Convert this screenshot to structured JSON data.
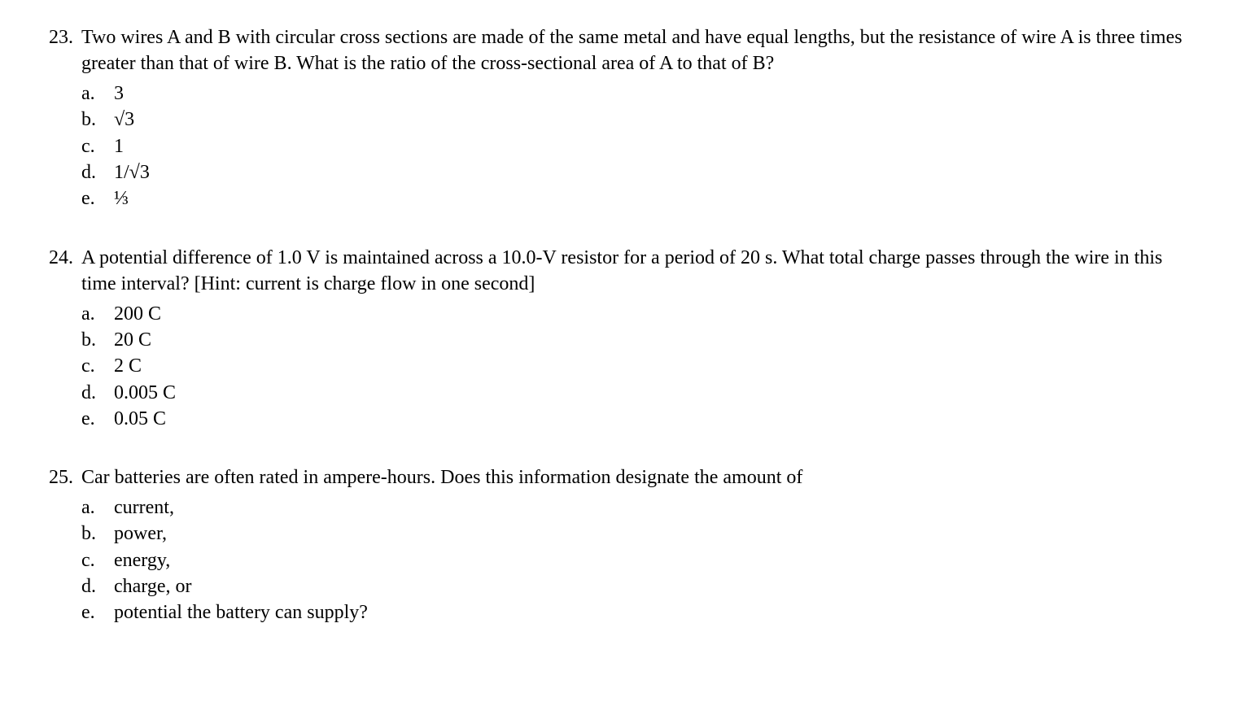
{
  "page": {
    "background_color": "#ffffff",
    "text_color": "#000000",
    "font_family": "Times New Roman",
    "font_size_pt": 18
  },
  "questions": [
    {
      "number": "23.",
      "text": "Two wires A and B with circular cross sections are made of the same metal and have equal lengths, but  the resistance of wire A is three times greater than that of wire B. What is the ratio of the cross-sectional area of A to that of B?",
      "options": [
        {
          "letter": "a.",
          "text": "3"
        },
        {
          "letter": "b.",
          "text": "√3"
        },
        {
          "letter": "c.",
          "text": "1"
        },
        {
          "letter": "d.",
          "text": "1/√3"
        },
        {
          "letter": "e.",
          "text": "⅓"
        }
      ]
    },
    {
      "number": "24.",
      "text": "A potential difference of 1.0 V is maintained across a 10.0-V resistor for a period of 20 s. What total charge passes through the wire in this time interval? [Hint: current is charge flow in one second]",
      "options": [
        {
          "letter": "a.",
          "text": "200 C"
        },
        {
          "letter": "b.",
          "text": "20 C"
        },
        {
          "letter": "c.",
          "text": "2 C"
        },
        {
          "letter": "d.",
          "text": "0.005 C"
        },
        {
          "letter": "e.",
          "text": "0.05 C"
        }
      ]
    },
    {
      "number": "25.",
      "text": "Car batteries are often rated in ampere-hours. Does this information designate the amount of",
      "options": [
        {
          "letter": "a.",
          "text": "current,"
        },
        {
          "letter": "b.",
          "text": "power,"
        },
        {
          "letter": "c.",
          "text": "energy,"
        },
        {
          "letter": "d.",
          "text": "charge, or"
        },
        {
          "letter": "e.",
          "text": "potential the battery can supply?"
        }
      ]
    }
  ]
}
